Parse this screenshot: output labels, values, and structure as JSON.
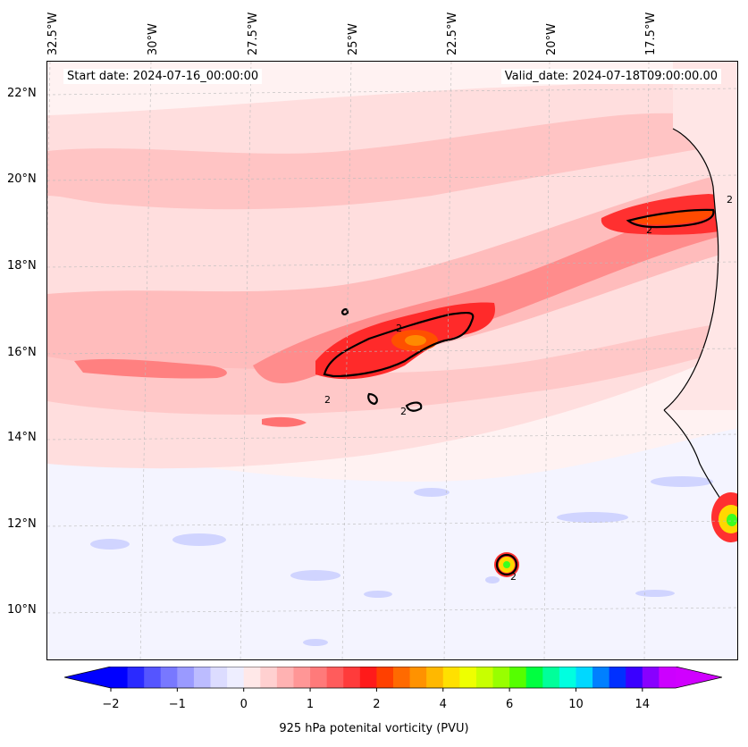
{
  "title_left": "Start date: 2024-07-16_00:00:00",
  "title_right": "Valid_date: 2024-07-18T09:00:00.00",
  "lon_labels": [
    "32.5°W",
    "30°W",
    "27.5°W",
    "25°W",
    "22.5°W",
    "20°W",
    "17.5°W"
  ],
  "lat_labels": [
    "22°N",
    "20°N",
    "18°N",
    "16°N",
    "14°N",
    "12°N",
    "10°N"
  ],
  "contour_labels": [
    "2",
    "2",
    "2",
    "2",
    "2",
    "2"
  ],
  "colorbar": {
    "label": "925 hPa potenital vorticity (PVU)",
    "tick_labels": [
      "−2",
      "−1",
      "0",
      "1",
      "2",
      "4",
      "6",
      "10",
      "14"
    ],
    "colors": [
      "#0000ff",
      "#2a2aff",
      "#5555ff",
      "#7878ff",
      "#9a9aff",
      "#bcbcff",
      "#dcdcff",
      "#eeeeff",
      "#ffe8e8",
      "#ffd0d0",
      "#ffb2b2",
      "#ff9696",
      "#ff7a7a",
      "#ff5c5c",
      "#ff3b3b",
      "#ff1a1a",
      "#ff4000",
      "#ff6a00",
      "#ff9200",
      "#ffb800",
      "#ffe000",
      "#eeff00",
      "#c8ff00",
      "#98ff00",
      "#55ff00",
      "#00ff40",
      "#00ff9a",
      "#00ffe0",
      "#00d8ff",
      "#0080ff",
      "#0030ff",
      "#3a00ff",
      "#8800ff",
      "#cc00ff"
    ],
    "extend_min_color": "#0000ff",
    "extend_max_color": "#d000ff"
  },
  "field_colors": {
    "background": "#fff2f2",
    "low_pv": "#dde0ff",
    "light_pink": "#ffd2d2",
    "pink": "#ffb4b4",
    "mid_red": "#ff8080",
    "red": "#ff3030",
    "orange_red": "#ff4a00",
    "orange": "#ff8a00",
    "yellow": "#ffd800",
    "green": "#3aff20",
    "land": "#ffffff",
    "coastline": "#000000",
    "contour": "#000000",
    "gridline": "#bbbbbb"
  }
}
